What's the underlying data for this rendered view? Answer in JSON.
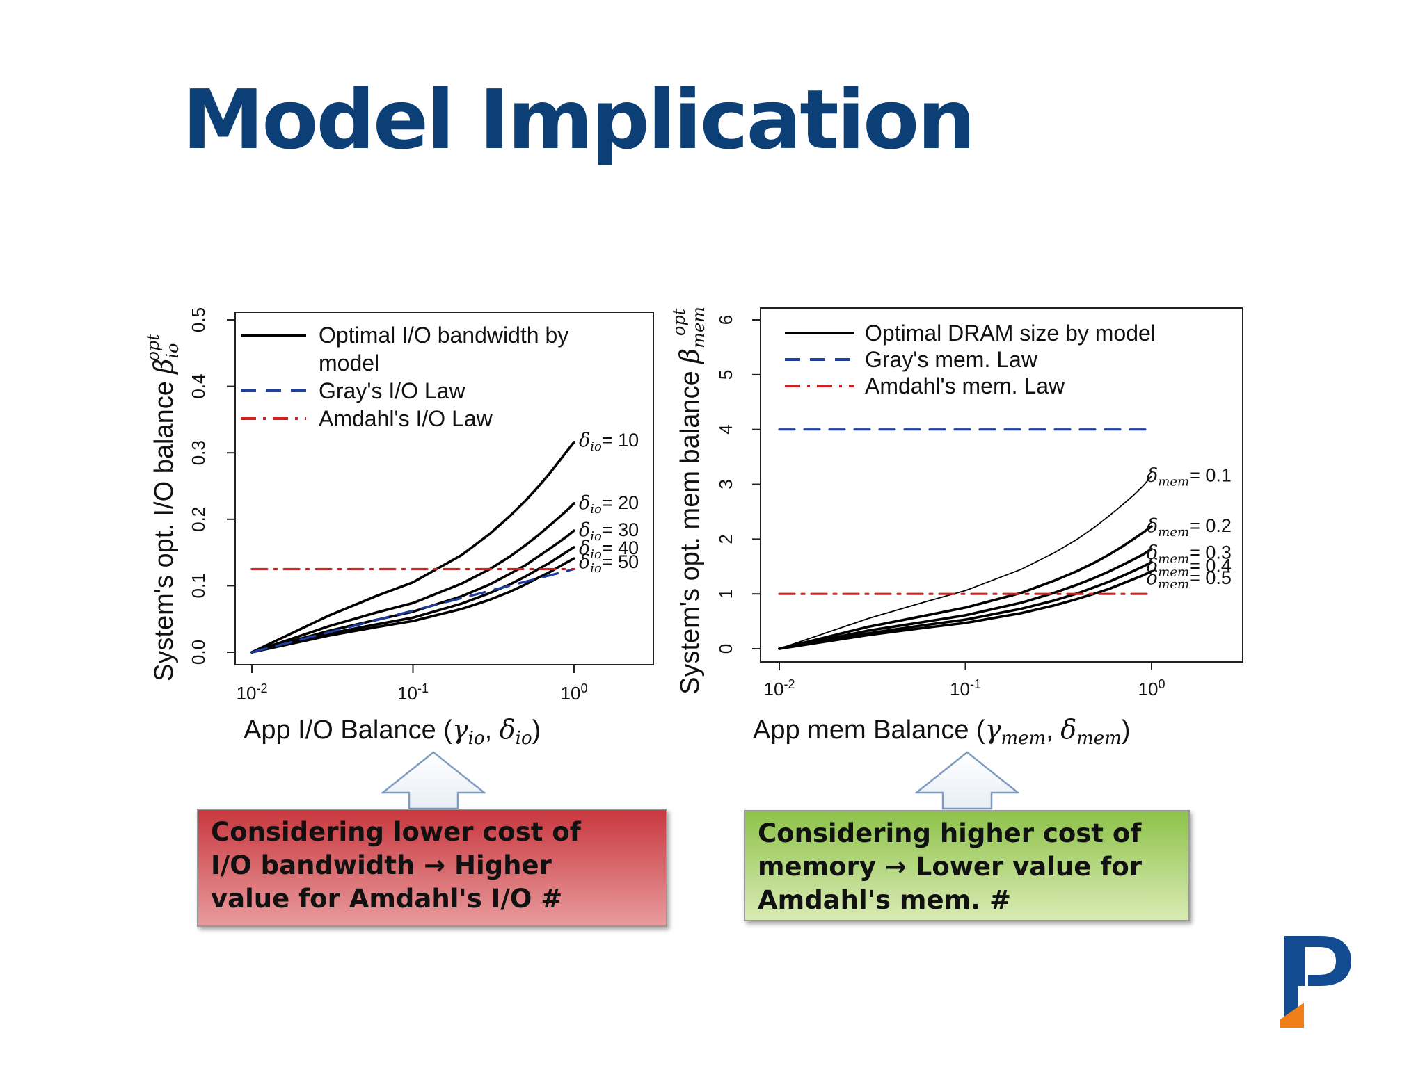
{
  "slide": {
    "title": "Model Implication"
  },
  "colors": {
    "title": "#0b3f76",
    "model": "#000000",
    "gray_law": "#1f3f9f",
    "amdahl_law": "#d42020",
    "callout_red": "#c8383f",
    "callout_green": "#8ec24a"
  },
  "chart_data": [
    {
      "type": "line",
      "xlabel": "App I/O Balance (γio, δio)",
      "ylabel": "System's opt. I/O balance βio opt",
      "x_scale": "log",
      "xlim": [
        0.01,
        1
      ],
      "ylim": [
        0,
        0.5
      ],
      "x_ticks": [
        {
          "value": 0.01,
          "base": "10",
          "exp": "-2"
        },
        {
          "value": 0.1,
          "base": "10",
          "exp": "-1"
        },
        {
          "value": 1,
          "base": "10",
          "exp": "0"
        }
      ],
      "y_ticks": [
        {
          "value": 0,
          "label": "0.0"
        },
        {
          "value": 0.1,
          "label": "0.1"
        },
        {
          "value": 0.2,
          "label": "0.2"
        },
        {
          "value": 0.3,
          "label": "0.3"
        },
        {
          "value": 0.4,
          "label": "0.4"
        },
        {
          "value": 0.5,
          "label": "0.5"
        }
      ],
      "grid": false,
      "legend": {
        "position": "top-left",
        "entries": [
          {
            "lines": [
              "Optimal I/O bandwidth by",
              "model"
            ],
            "style": "solid",
            "color": "#000000"
          },
          {
            "lines": [
              "Gray's I/O Law"
            ],
            "style": "dashed",
            "color": "#1f3f9f"
          },
          {
            "lines": [
              "Amdahl's I/O Law"
            ],
            "style": "dashdot",
            "color": "#d42020"
          }
        ]
      },
      "series": [
        {
          "name": "δio= 10",
          "sym": "δ",
          "sub": "io",
          "value": "= 10",
          "style": "solid",
          "color": "#000000",
          "x": [
            0.01,
            0.03,
            0.06,
            0.1,
            0.2,
            0.3,
            0.4,
            0.5,
            0.6,
            0.7,
            0.8,
            0.9,
            1.0
          ],
          "y": [
            0.0,
            0.055,
            0.085,
            0.105,
            0.146,
            0.178,
            0.205,
            0.228,
            0.249,
            0.268,
            0.286,
            0.302,
            0.316
          ]
        },
        {
          "name": "δio= 20",
          "sym": "δ",
          "sub": "io",
          "value": "= 20",
          "style": "solid",
          "color": "#000000",
          "x": [
            0.01,
            0.03,
            0.06,
            0.1,
            0.2,
            0.3,
            0.4,
            0.5,
            0.6,
            0.7,
            0.8,
            0.9,
            1.0
          ],
          "y": [
            0.0,
            0.039,
            0.06,
            0.074,
            0.103,
            0.125,
            0.144,
            0.161,
            0.176,
            0.19,
            0.202,
            0.213,
            0.224
          ]
        },
        {
          "name": "δio= 30",
          "sym": "δ",
          "sub": "io",
          "value": "= 30",
          "style": "solid",
          "color": "#000000",
          "x": [
            0.01,
            0.03,
            0.06,
            0.1,
            0.2,
            0.3,
            0.4,
            0.5,
            0.6,
            0.7,
            0.8,
            0.9,
            1.0
          ],
          "y": [
            0.0,
            0.032,
            0.049,
            0.061,
            0.084,
            0.102,
            0.118,
            0.131,
            0.144,
            0.155,
            0.165,
            0.174,
            0.183
          ]
        },
        {
          "name": "δio= 40",
          "sym": "δ",
          "sub": "io",
          "value": "= 40",
          "style": "solid",
          "color": "#000000",
          "x": [
            0.01,
            0.03,
            0.06,
            0.1,
            0.2,
            0.3,
            0.4,
            0.5,
            0.6,
            0.7,
            0.8,
            0.9,
            1.0
          ],
          "y": [
            0.0,
            0.028,
            0.042,
            0.052,
            0.073,
            0.089,
            0.102,
            0.114,
            0.125,
            0.134,
            0.143,
            0.151,
            0.158
          ]
        },
        {
          "name": "δio= 50",
          "sym": "δ",
          "sub": "io",
          "value": "= 50",
          "style": "solid",
          "color": "#000000",
          "x": [
            0.01,
            0.03,
            0.06,
            0.1,
            0.2,
            0.3,
            0.4,
            0.5,
            0.6,
            0.7,
            0.8,
            0.9,
            1.0
          ],
          "y": [
            0.0,
            0.025,
            0.038,
            0.047,
            0.065,
            0.079,
            0.091,
            0.102,
            0.112,
            0.12,
            0.128,
            0.135,
            0.141
          ]
        },
        {
          "name": "Gray's I/O Law",
          "style": "dashed",
          "color": "#1f3f9f",
          "x": [
            0.01,
            1.0
          ],
          "y": [
            0.0,
            0.125
          ]
        },
        {
          "name": "Amdahl's I/O Law",
          "style": "dashdot",
          "color": "#d42020",
          "x": [
            0.01,
            1.0
          ],
          "y": [
            0.125,
            0.125
          ]
        }
      ]
    },
    {
      "type": "line",
      "xlabel": "App mem Balance (γmem, δmem)",
      "ylabel": "System's opt. mem balance βmem opt",
      "x_scale": "log",
      "xlim": [
        0.01,
        1
      ],
      "ylim": [
        0,
        6
      ],
      "x_ticks": [
        {
          "value": 0.01,
          "base": "10",
          "exp": "-2"
        },
        {
          "value": 0.1,
          "base": "10",
          "exp": "-1"
        },
        {
          "value": 1,
          "base": "10",
          "exp": "0"
        }
      ],
      "y_ticks": [
        {
          "value": 0,
          "label": "0"
        },
        {
          "value": 1,
          "label": "1"
        },
        {
          "value": 2,
          "label": "2"
        },
        {
          "value": 3,
          "label": "3"
        },
        {
          "value": 4,
          "label": "4"
        },
        {
          "value": 5,
          "label": "5"
        },
        {
          "value": 6,
          "label": "6"
        }
      ],
      "grid": false,
      "legend": {
        "position": "top-left",
        "entries": [
          {
            "lines": [
              "Optimal DRAM size by model"
            ],
            "style": "solid",
            "color": "#000000"
          },
          {
            "lines": [
              "Gray's mem. Law"
            ],
            "style": "dashed",
            "color": "#1f3f9f"
          },
          {
            "lines": [
              "Amdahl's mem. Law"
            ],
            "style": "dashdot",
            "color": "#d42020"
          }
        ]
      },
      "series": [
        {
          "name": "δmem= 0.1",
          "sym": "δ",
          "sub": "mem",
          "value": "= 0.1",
          "style": "solid",
          "color": "#000000",
          "x": [
            0.01,
            0.03,
            0.06,
            0.1,
            0.2,
            0.3,
            0.4,
            0.5,
            0.6,
            0.7,
            0.8,
            0.9,
            1.0
          ],
          "y": [
            0.0,
            0.55,
            0.85,
            1.06,
            1.45,
            1.75,
            2.0,
            2.23,
            2.44,
            2.63,
            2.8,
            2.97,
            3.15
          ]
        },
        {
          "name": "δmem= 0.2",
          "sym": "δ",
          "sub": "mem",
          "value": "= 0.2",
          "style": "solid",
          "color": "#000000",
          "x": [
            0.01,
            0.03,
            0.06,
            0.1,
            0.2,
            0.3,
            0.4,
            0.5,
            0.6,
            0.7,
            0.8,
            0.9,
            1.0
          ],
          "y": [
            0.0,
            0.4,
            0.6,
            0.75,
            1.02,
            1.24,
            1.42,
            1.58,
            1.73,
            1.87,
            2.0,
            2.12,
            2.23
          ]
        },
        {
          "name": "δmem= 0.3",
          "sym": "δ",
          "sub": "mem",
          "value": "= 0.3",
          "style": "solid",
          "color": "#000000",
          "x": [
            0.01,
            0.03,
            0.06,
            0.1,
            0.2,
            0.3,
            0.4,
            0.5,
            0.6,
            0.7,
            0.8,
            0.9,
            1.0
          ],
          "y": [
            0.0,
            0.33,
            0.49,
            0.61,
            0.84,
            1.02,
            1.17,
            1.3,
            1.42,
            1.53,
            1.63,
            1.72,
            1.82
          ]
        },
        {
          "name": "δmem= 0.4",
          "sym": "δ",
          "sub": "mem",
          "value": "= 0.4",
          "style": "solid",
          "color": "#000000",
          "x": [
            0.01,
            0.03,
            0.06,
            0.1,
            0.2,
            0.3,
            0.4,
            0.5,
            0.6,
            0.7,
            0.8,
            0.9,
            1.0
          ],
          "y": [
            0.0,
            0.28,
            0.43,
            0.53,
            0.73,
            0.88,
            1.01,
            1.13,
            1.23,
            1.33,
            1.42,
            1.5,
            1.58
          ]
        },
        {
          "name": "δmem= 0.5",
          "sym": "δ",
          "sub": "mem",
          "value": "= 0.5",
          "style": "solid",
          "color": "#000000",
          "x": [
            0.01,
            0.03,
            0.06,
            0.1,
            0.2,
            0.3,
            0.4,
            0.5,
            0.6,
            0.7,
            0.8,
            0.9,
            1.0
          ],
          "y": [
            0.0,
            0.25,
            0.38,
            0.47,
            0.65,
            0.79,
            0.91,
            1.01,
            1.1,
            1.19,
            1.27,
            1.34,
            1.41
          ]
        },
        {
          "name": "Gray's mem. Law",
          "style": "dashed",
          "color": "#1f3f9f",
          "x": [
            0.01,
            1.0
          ],
          "y": [
            4.0,
            4.0
          ]
        },
        {
          "name": "Amdahl's mem. Law",
          "style": "dashdot",
          "color": "#d42020",
          "x": [
            0.01,
            1.0
          ],
          "y": [
            1.0,
            1.0
          ]
        }
      ]
    }
  ],
  "callouts": {
    "left": {
      "lines": [
        "Considering lower cost of",
        "I/O bandwidth → Higher",
        "value for Amdahl's I/O #"
      ]
    },
    "right": {
      "lines": [
        "Considering higher cost of",
        "memory → Lower value for",
        "Amdahl's mem. #"
      ]
    }
  },
  "logo": {
    "name": "university-logo"
  }
}
